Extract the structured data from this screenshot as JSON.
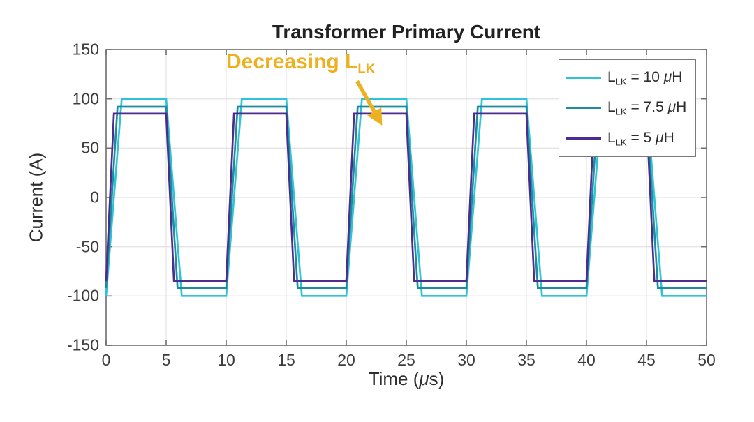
{
  "chart_data": {
    "type": "line",
    "title": "Transformer Primary Current",
    "xlabel": "Time (μs)",
    "xlabel_parts": {
      "pre": "Time (",
      "mu": "μ",
      "post": "s)"
    },
    "ylabel": "Current (A)",
    "xlim": [
      0,
      50
    ],
    "ylim": [
      -150,
      150
    ],
    "xticks": [
      0,
      5,
      10,
      15,
      20,
      25,
      30,
      35,
      40,
      45,
      50
    ],
    "yticks": [
      150,
      100,
      50,
      0,
      -50,
      -100,
      -150
    ],
    "grid": true,
    "legend_position": "top-right",
    "axis_color": "#6e6e6e",
    "grid_color": "#e4e4e4",
    "series": [
      {
        "name": "L_LK = 10 μH",
        "label_parts": {
          "sym": "L",
          "sub": "LK",
          "mid": " = 10 ",
          "mu": "μ",
          "unit": "H"
        },
        "color": "#2fc3d7",
        "amplitude_A": 100,
        "transition_us": 1.3,
        "period_us": 10,
        "points": [
          [
            0,
            -100
          ],
          [
            1.3,
            100
          ],
          [
            5,
            100
          ],
          [
            6.3,
            -100
          ],
          [
            10,
            -100
          ],
          [
            11.3,
            100
          ],
          [
            15,
            100
          ],
          [
            16.3,
            -100
          ],
          [
            20,
            -100
          ],
          [
            21.3,
            100
          ],
          [
            25,
            100
          ],
          [
            26.3,
            -100
          ],
          [
            30,
            -100
          ],
          [
            31.3,
            100
          ],
          [
            35,
            100
          ],
          [
            36.3,
            -100
          ],
          [
            40,
            -100
          ],
          [
            41.3,
            100
          ],
          [
            45,
            100
          ],
          [
            46.3,
            -100
          ],
          [
            50,
            -100
          ]
        ]
      },
      {
        "name": "L_LK = 7.5 μH",
        "label_parts": {
          "sym": "L",
          "sub": "LK",
          "mid": " = 7.5 ",
          "mu": "μ",
          "unit": "H"
        },
        "color": "#1c8c9f",
        "amplitude_A": 92,
        "transition_us": 0.95,
        "period_us": 10,
        "points": [
          [
            0,
            -92
          ],
          [
            0.95,
            92
          ],
          [
            5,
            92
          ],
          [
            5.95,
            -92
          ],
          [
            10,
            -92
          ],
          [
            10.95,
            92
          ],
          [
            15,
            92
          ],
          [
            15.95,
            -92
          ],
          [
            20,
            -92
          ],
          [
            20.95,
            92
          ],
          [
            25,
            92
          ],
          [
            25.95,
            -92
          ],
          [
            30,
            -92
          ],
          [
            30.95,
            92
          ],
          [
            35,
            92
          ],
          [
            35.95,
            -92
          ],
          [
            40,
            -92
          ],
          [
            40.95,
            92
          ],
          [
            45,
            92
          ],
          [
            45.95,
            -92
          ],
          [
            50,
            -92
          ]
        ]
      },
      {
        "name": "L_LK = 5 μH",
        "label_parts": {
          "sym": "L",
          "sub": "LK",
          "mid": " = 5 ",
          "mu": "μ",
          "unit": "H"
        },
        "color": "#4c2c8f",
        "amplitude_A": 85,
        "transition_us": 0.65,
        "period_us": 10,
        "points": [
          [
            0,
            -85
          ],
          [
            0.65,
            85
          ],
          [
            5,
            85
          ],
          [
            5.65,
            -85
          ],
          [
            10,
            -85
          ],
          [
            10.65,
            85
          ],
          [
            15,
            85
          ],
          [
            15.65,
            -85
          ],
          [
            20,
            -85
          ],
          [
            20.65,
            85
          ],
          [
            25,
            85
          ],
          [
            25.65,
            -85
          ],
          [
            30,
            -85
          ],
          [
            30.65,
            85
          ],
          [
            35,
            85
          ],
          [
            35.65,
            -85
          ],
          [
            40,
            -85
          ],
          [
            40.65,
            85
          ],
          [
            45,
            85
          ],
          [
            45.65,
            -85
          ],
          [
            50,
            -85
          ]
        ]
      }
    ],
    "annotation": {
      "text": "Decreasing L_LK",
      "text_parts": {
        "main": "Decreasing L",
        "sub": "LK"
      },
      "color": "#edb120",
      "arrow_from_data": [
        20.9,
        118
      ],
      "arrow_to_data": [
        22.8,
        77
      ]
    }
  }
}
